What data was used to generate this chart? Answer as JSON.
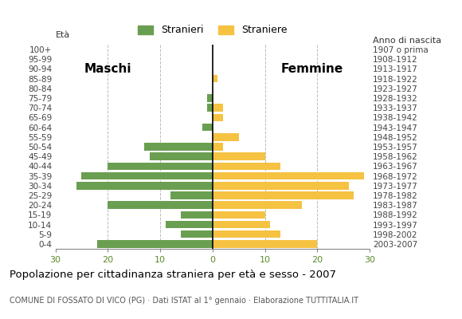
{
  "age_groups": [
    "0-4",
    "5-9",
    "10-14",
    "15-19",
    "20-24",
    "25-29",
    "30-34",
    "35-39",
    "40-44",
    "45-49",
    "50-54",
    "55-59",
    "60-64",
    "65-69",
    "70-74",
    "75-79",
    "80-84",
    "85-89",
    "90-94",
    "95-99",
    "100+"
  ],
  "birth_years": [
    "2003-2007",
    "1998-2002",
    "1993-1997",
    "1988-1992",
    "1983-1987",
    "1978-1982",
    "1973-1977",
    "1968-1972",
    "1963-1967",
    "1958-1962",
    "1953-1957",
    "1948-1952",
    "1943-1947",
    "1938-1942",
    "1933-1937",
    "1928-1932",
    "1923-1927",
    "1918-1922",
    "1913-1917",
    "1908-1912",
    "1907 o prima"
  ],
  "maschi": [
    22,
    6,
    9,
    6,
    20,
    8,
    26,
    25,
    20,
    12,
    13,
    0,
    2,
    0,
    1,
    1,
    0,
    0,
    0,
    0,
    0
  ],
  "femmine": [
    20,
    13,
    11,
    10,
    17,
    27,
    26,
    29,
    13,
    10,
    2,
    5,
    0,
    2,
    2,
    0,
    0,
    1,
    0,
    0,
    0
  ],
  "male_color": "#6a9e50",
  "female_color": "#f5c242",
  "title": "Popolazione per cittadinanza straniera per età e sesso - 2007",
  "subtitle": "COMUNE DI FOSSATO DI VICO (PG) · Dati ISTAT al 1° gennaio · Elaborazione TUTTITALIA.IT",
  "legend_male": "Stranieri",
  "legend_female": "Straniere",
  "label_eta": "Età",
  "label_anno": "Anno di nascita",
  "label_maschi": "Maschi",
  "label_femmine": "Femmine",
  "xlim": 30,
  "background_color": "#ffffff",
  "grid_color": "#bbbbbb",
  "axis_color": "#5a8a2a"
}
